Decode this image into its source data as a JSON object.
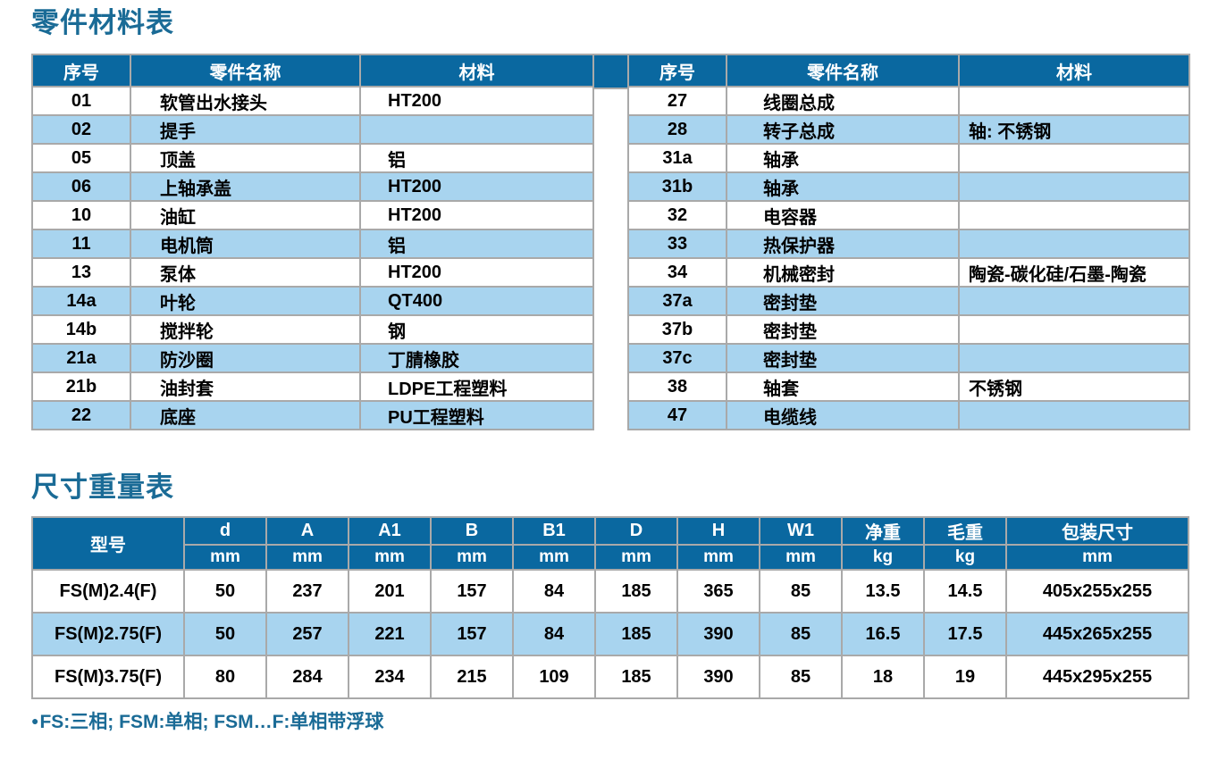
{
  "colors": {
    "header_bg": "#0A68A0",
    "row_alt": "#A8D4EF",
    "title_text": "#1A6B96",
    "border": "#A9A9A9"
  },
  "parts_section": {
    "title": "零件材料表",
    "headers": {
      "no": "序号",
      "name": "零件名称",
      "material": "材料"
    },
    "left_rows": [
      {
        "no": "01",
        "name": "软管出水接头",
        "material": "HT200"
      },
      {
        "no": "02",
        "name": "提手",
        "material": ""
      },
      {
        "no": "05",
        "name": "顶盖",
        "material": "铝"
      },
      {
        "no": "06",
        "name": "上轴承盖",
        "material": "HT200"
      },
      {
        "no": "10",
        "name": "油缸",
        "material": "HT200"
      },
      {
        "no": "11",
        "name": "电机筒",
        "material": "铝"
      },
      {
        "no": "13",
        "name": "泵体",
        "material": "HT200"
      },
      {
        "no": "14a",
        "name": "叶轮",
        "material": "QT400"
      },
      {
        "no": "14b",
        "name": "搅拌轮",
        "material": "钢"
      },
      {
        "no": "21a",
        "name": "防沙圈",
        "material": "丁腈橡胶"
      },
      {
        "no": "21b",
        "name": "油封套",
        "material": "LDPE工程塑料"
      },
      {
        "no": "22",
        "name": "底座",
        "material": "PU工程塑料"
      }
    ],
    "right_rows": [
      {
        "no": "27",
        "name": "线圈总成",
        "material": ""
      },
      {
        "no": "28",
        "name": "转子总成",
        "material": "轴: 不锈钢"
      },
      {
        "no": "31a",
        "name": "轴承",
        "material": ""
      },
      {
        "no": "31b",
        "name": "轴承",
        "material": ""
      },
      {
        "no": "32",
        "name": "电容器",
        "material": ""
      },
      {
        "no": "33",
        "name": "热保护器",
        "material": ""
      },
      {
        "no": "34",
        "name": "机械密封",
        "material": "陶瓷-碳化硅/石墨-陶瓷"
      },
      {
        "no": "37a",
        "name": "密封垫",
        "material": ""
      },
      {
        "no": "37b",
        "name": "密封垫",
        "material": ""
      },
      {
        "no": "37c",
        "name": "密封垫",
        "material": ""
      },
      {
        "no": "38",
        "name": "轴套",
        "material": "不锈钢"
      },
      {
        "no": "47",
        "name": "电缆线",
        "material": ""
      }
    ]
  },
  "dimensions_section": {
    "title": "尺寸重量表",
    "model_header": "型号",
    "columns": [
      {
        "label": "d",
        "unit": "mm"
      },
      {
        "label": "A",
        "unit": "mm"
      },
      {
        "label": "A1",
        "unit": "mm"
      },
      {
        "label": "B",
        "unit": "mm"
      },
      {
        "label": "B1",
        "unit": "mm"
      },
      {
        "label": "D",
        "unit": "mm"
      },
      {
        "label": "H",
        "unit": "mm"
      },
      {
        "label": "W1",
        "unit": "mm"
      },
      {
        "label": "净重",
        "unit": "kg"
      },
      {
        "label": "毛重",
        "unit": "kg"
      },
      {
        "label": "包装尺寸",
        "unit": "mm"
      }
    ],
    "rows": [
      {
        "model": "FS(M)2.4(F)",
        "values": [
          "50",
          "237",
          "201",
          "157",
          "84",
          "185",
          "365",
          "85",
          "13.5",
          "14.5",
          "405x255x255"
        ]
      },
      {
        "model": "FS(M)2.75(F)",
        "values": [
          "50",
          "257",
          "221",
          "157",
          "84",
          "185",
          "390",
          "85",
          "16.5",
          "17.5",
          "445x265x255"
        ]
      },
      {
        "model": "FS(M)3.75(F)",
        "values": [
          "80",
          "284",
          "234",
          "215",
          "109",
          "185",
          "390",
          "85",
          "18",
          "19",
          "445x295x255"
        ]
      }
    ]
  },
  "footnote": {
    "bullet": "●",
    "text": "FS:三相; FSM:单相; FSM…F:单相带浮球"
  }
}
